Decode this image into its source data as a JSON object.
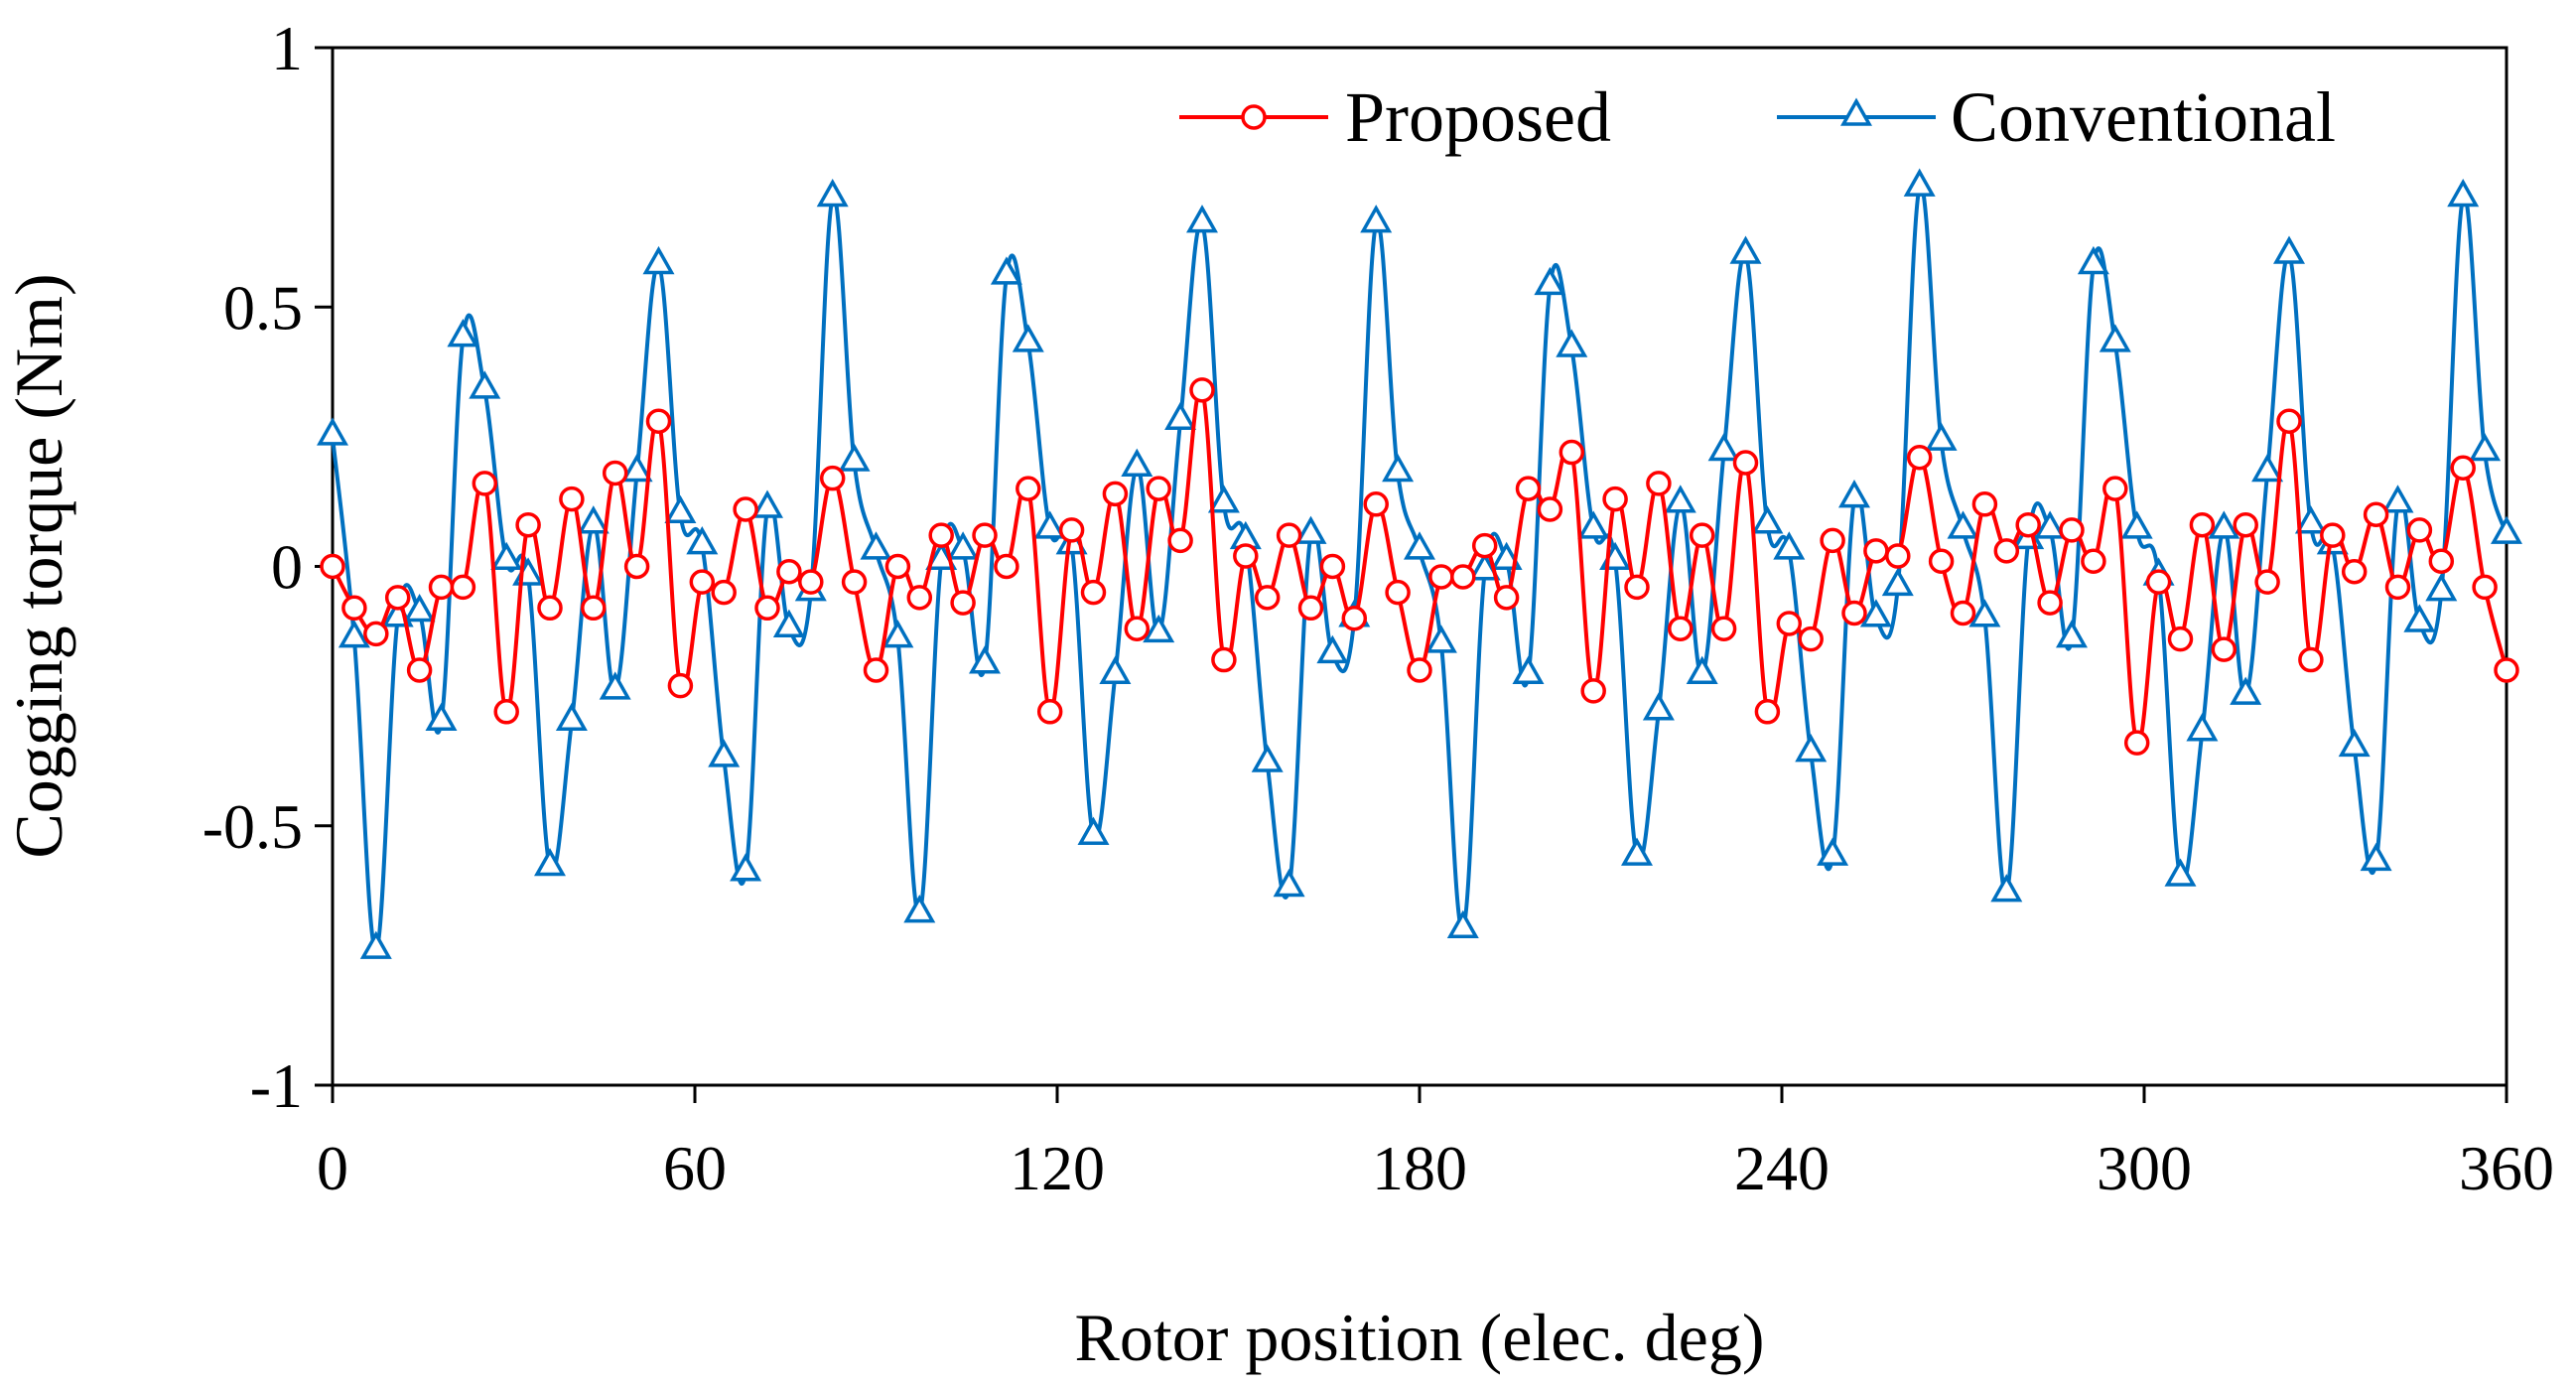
{
  "chart_data": {
    "type": "line",
    "title": "",
    "xlabel": "Rotor position (elec. deg)",
    "ylabel": "Cogging torque (Nm)",
    "xlim": [
      0,
      360
    ],
    "ylim": [
      -1,
      1
    ],
    "xticks": [
      0,
      60,
      120,
      180,
      240,
      300,
      360
    ],
    "xtick_labels": [
      "0",
      "60",
      "120",
      "180",
      "240",
      "300",
      "360"
    ],
    "yticks": [
      1,
      0.5,
      0,
      -0.5,
      -1
    ],
    "ytick_labels": [
      "1",
      "0.5",
      "0",
      "-0.5",
      "-1"
    ],
    "grid": false,
    "legend_position": "top-right",
    "series": [
      {
        "name": "Proposed",
        "color": "#ff0000",
        "marker": "circle",
        "x": [
          0,
          3.6,
          7.2,
          10.8,
          14.4,
          18,
          21.6,
          25.2,
          28.8,
          32.4,
          36,
          39.6,
          43.2,
          46.8,
          50.4,
          54,
          57.6,
          61.2,
          64.8,
          68.4,
          72,
          75.6,
          79.2,
          82.8,
          86.4,
          90,
          93.6,
          97.2,
          100.8,
          104.4,
          108,
          111.6,
          115.2,
          118.8,
          122.4,
          126,
          129.6,
          133.2,
          136.8,
          140.4,
          144,
          147.6,
          151.2,
          154.8,
          158.4,
          162,
          165.6,
          169.2,
          172.8,
          176.4,
          180,
          183.6,
          187.2,
          190.8,
          194.4,
          198,
          201.6,
          205.2,
          208.8,
          212.4,
          216,
          219.6,
          223.2,
          226.8,
          230.4,
          234,
          237.6,
          241.2,
          244.8,
          248.4,
          252,
          255.6,
          259.2,
          262.8,
          266.4,
          270,
          273.6,
          277.2,
          280.8,
          284.4,
          288,
          291.6,
          295.2,
          298.8,
          302.4,
          306,
          309.6,
          313.2,
          316.8,
          320.4,
          324,
          327.6,
          331.2,
          334.8,
          338.4,
          342,
          345.6,
          349.2,
          352.8,
          356.4,
          360
        ],
        "values": [
          0,
          -0.08,
          -0.13,
          -0.06,
          -0.2,
          -0.04,
          -0.04,
          0.16,
          -0.28,
          0.08,
          -0.08,
          0.13,
          -0.08,
          0.18,
          0.0,
          0.28,
          -0.23,
          -0.03,
          -0.05,
          0.11,
          -0.08,
          -0.01,
          -0.03,
          0.17,
          -0.03,
          -0.2,
          0.0,
          -0.06,
          0.06,
          -0.07,
          0.06,
          0.0,
          0.15,
          -0.28,
          0.07,
          -0.05,
          0.14,
          -0.12,
          0.15,
          0.05,
          0.34,
          -0.18,
          0.02,
          -0.06,
          0.06,
          -0.08,
          0.0,
          -0.1,
          0.12,
          -0.05,
          -0.2,
          -0.02,
          -0.02,
          0.04,
          -0.06,
          0.15,
          0.11,
          0.22,
          -0.24,
          0.13,
          -0.04,
          0.16,
          -0.12,
          0.06,
          -0.12,
          0.2,
          -0.28,
          -0.11,
          -0.14,
          0.05,
          -0.09,
          0.03,
          0.02,
          0.21,
          0.01,
          -0.09,
          0.12,
          0.03,
          0.08,
          -0.07,
          0.07,
          0.01,
          0.15,
          -0.34,
          -0.03,
          -0.14,
          0.08,
          -0.16,
          0.08,
          -0.03,
          0.28,
          -0.18,
          0.06,
          -0.01,
          0.1,
          -0.04,
          0.07,
          0.01,
          0.19,
          -0.04,
          -0.2
        ]
      },
      {
        "name": "Conventional",
        "color": "#0070c0",
        "marker": "triangle",
        "x": [
          0,
          3.6,
          7.2,
          10.8,
          14.4,
          18,
          21.6,
          25.2,
          28.8,
          32.4,
          36,
          39.6,
          43.2,
          46.8,
          50.4,
          54,
          57.6,
          61.2,
          64.8,
          68.4,
          72,
          75.6,
          79.2,
          82.8,
          86.4,
          90,
          93.6,
          97.2,
          100.8,
          104.4,
          108,
          111.6,
          115.2,
          118.8,
          122.4,
          126,
          129.6,
          133.2,
          136.8,
          140.4,
          144,
          147.6,
          151.2,
          154.8,
          158.4,
          162,
          165.6,
          169.2,
          172.8,
          176.4,
          180,
          183.6,
          187.2,
          190.8,
          194.4,
          198,
          201.6,
          205.2,
          208.8,
          212.4,
          216,
          219.6,
          223.2,
          226.8,
          230.4,
          234,
          237.6,
          241.2,
          244.8,
          248.4,
          252,
          255.6,
          259.2,
          262.8,
          266.4,
          270,
          273.6,
          277.2,
          280.8,
          284.4,
          288,
          291.6,
          295.2,
          298.8,
          302.4,
          306,
          309.6,
          313.2,
          316.8,
          320.4,
          324,
          327.6,
          331.2,
          334.8,
          338.4,
          342,
          345.6,
          349.2,
          352.8,
          356.4,
          360
        ],
        "values": [
          0.25,
          -0.14,
          -0.74,
          -0.1,
          -0.09,
          -0.3,
          0.44,
          0.34,
          0.01,
          -0.02,
          -0.58,
          -0.3,
          0.08,
          -0.24,
          0.18,
          0.58,
          0.1,
          0.04,
          -0.37,
          -0.59,
          0.11,
          -0.12,
          -0.05,
          0.71,
          0.2,
          0.03,
          -0.14,
          -0.67,
          0.01,
          0.03,
          -0.19,
          0.56,
          0.43,
          0.07,
          0.04,
          -0.52,
          -0.21,
          0.19,
          -0.13,
          0.28,
          0.66,
          0.12,
          0.05,
          -0.38,
          -0.62,
          0.06,
          -0.17,
          -0.1,
          0.66,
          0.18,
          0.03,
          -0.15,
          -0.7,
          -0.01,
          0.01,
          -0.21,
          0.54,
          0.42,
          0.07,
          0.01,
          -0.56,
          -0.28,
          0.12,
          -0.21,
          0.22,
          0.6,
          0.08,
          0.03,
          -0.36,
          -0.56,
          0.13,
          -0.1,
          -0.04,
          0.73,
          0.24,
          0.07,
          -0.1,
          -0.63,
          0.05,
          0.07,
          -0.14,
          0.58,
          0.43,
          0.07,
          -0.02,
          -0.6,
          -0.32,
          0.07,
          -0.25,
          0.18,
          0.6,
          0.08,
          0.04,
          -0.35,
          -0.57,
          0.12,
          -0.11,
          -0.05,
          0.71,
          0.22,
          0.06
        ]
      }
    ]
  }
}
